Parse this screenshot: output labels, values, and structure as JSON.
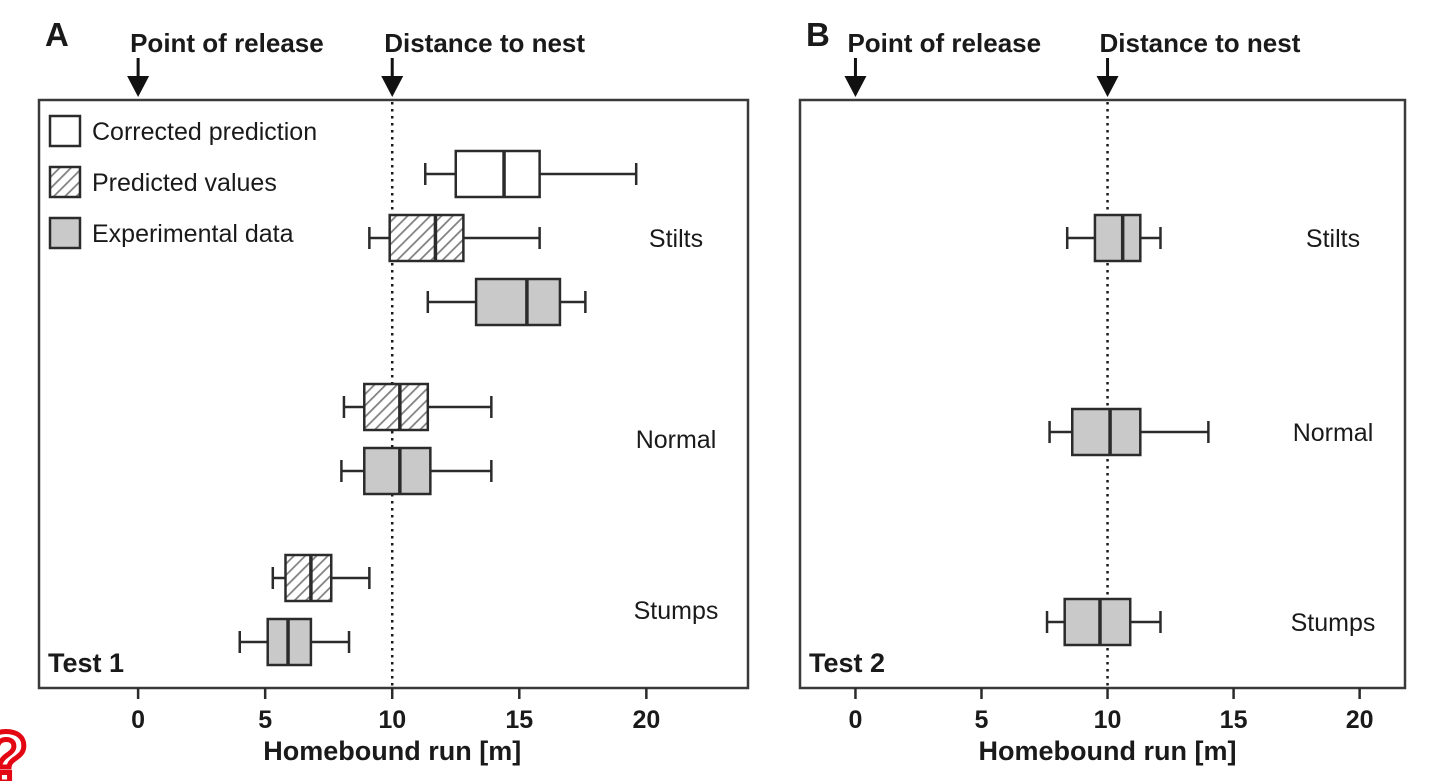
{
  "page": {
    "background": "#ffffff",
    "stray_mark": "?"
  },
  "styles": {
    "gray_fill": "#c9c9c9",
    "white_fill": "#ffffff",
    "stroke": "#2b2b2b",
    "border": "#3a3a3a",
    "hatch_line": "#808080",
    "text": "#1a1a1a",
    "arrow": "#111111",
    "stray_mark_color": "#e30613"
  },
  "chart_data": [
    {
      "type": "boxplot",
      "orientation": "horizontal",
      "panel_label": "A",
      "test_label": "Test 1",
      "xlabel": "Homebound run [m]",
      "xticks": [
        0,
        5,
        10,
        15,
        20
      ],
      "xlim": [
        -3.9,
        24.0
      ],
      "reference_line_x": 10,
      "grid": false,
      "annotations": [
        {
          "label": "Point of release",
          "x": 0,
          "marker": "down-arrow"
        },
        {
          "label": "Distance to nest",
          "x": 10,
          "marker": "down-arrow"
        }
      ],
      "legend": [
        {
          "label": "Corrected prediction",
          "style": "white"
        },
        {
          "label": "Predicted values",
          "style": "hatched"
        },
        {
          "label": "Experimental data",
          "style": "gray"
        }
      ],
      "groups": [
        {
          "label": "Stilts",
          "boxes": [
            {
              "series": "Corrected prediction",
              "style": "white",
              "low": 11.3,
              "q1": 12.5,
              "median": 14.4,
              "q3": 15.8,
              "high": 19.6
            },
            {
              "series": "Predicted values",
              "style": "hatched",
              "low": 9.1,
              "q1": 9.9,
              "median": 11.7,
              "q3": 12.8,
              "high": 15.8
            },
            {
              "series": "Experimental data",
              "style": "gray",
              "low": 11.4,
              "q1": 13.3,
              "median": 15.3,
              "q3": 16.6,
              "high": 17.6
            }
          ]
        },
        {
          "label": "Normal",
          "boxes": [
            {
              "series": "Predicted values",
              "style": "hatched",
              "low": 8.1,
              "q1": 8.9,
              "median": 10.3,
              "q3": 11.4,
              "high": 13.9
            },
            {
              "series": "Experimental data",
              "style": "gray",
              "low": 8.0,
              "q1": 8.9,
              "median": 10.3,
              "q3": 11.5,
              "high": 13.9
            }
          ]
        },
        {
          "label": "Stumps",
          "boxes": [
            {
              "series": "Predicted values",
              "style": "hatched",
              "low": 5.3,
              "q1": 5.8,
              "median": 6.8,
              "q3": 7.6,
              "high": 9.1
            },
            {
              "series": "Experimental data",
              "style": "gray",
              "low": 4.0,
              "q1": 5.1,
              "median": 5.9,
              "q3": 6.8,
              "high": 8.3
            }
          ]
        }
      ]
    },
    {
      "type": "boxplot",
      "orientation": "horizontal",
      "panel_label": "B",
      "test_label": "Test 2",
      "xlabel": "Homebound run [m]",
      "xticks": [
        0,
        5,
        10,
        15,
        20
      ],
      "xlim": [
        -2.2,
        21.8
      ],
      "reference_line_x": 10,
      "grid": false,
      "annotations": [
        {
          "label": "Point of release",
          "x": 0,
          "marker": "down-arrow"
        },
        {
          "label": "Distance to nest",
          "x": 10,
          "marker": "down-arrow"
        }
      ],
      "groups": [
        {
          "label": "Stilts",
          "boxes": [
            {
              "series": "Experimental data",
              "style": "gray",
              "low": 8.4,
              "q1": 9.5,
              "median": 10.6,
              "q3": 11.3,
              "high": 12.1
            }
          ]
        },
        {
          "label": "Normal",
          "boxes": [
            {
              "series": "Experimental data",
              "style": "gray",
              "low": 7.7,
              "q1": 8.6,
              "median": 10.1,
              "q3": 11.3,
              "high": 14.0
            }
          ]
        },
        {
          "label": "Stumps",
          "boxes": [
            {
              "series": "Experimental data",
              "style": "gray",
              "low": 7.6,
              "q1": 8.3,
              "median": 9.7,
              "q3": 10.9,
              "high": 12.1
            }
          ]
        }
      ]
    }
  ]
}
